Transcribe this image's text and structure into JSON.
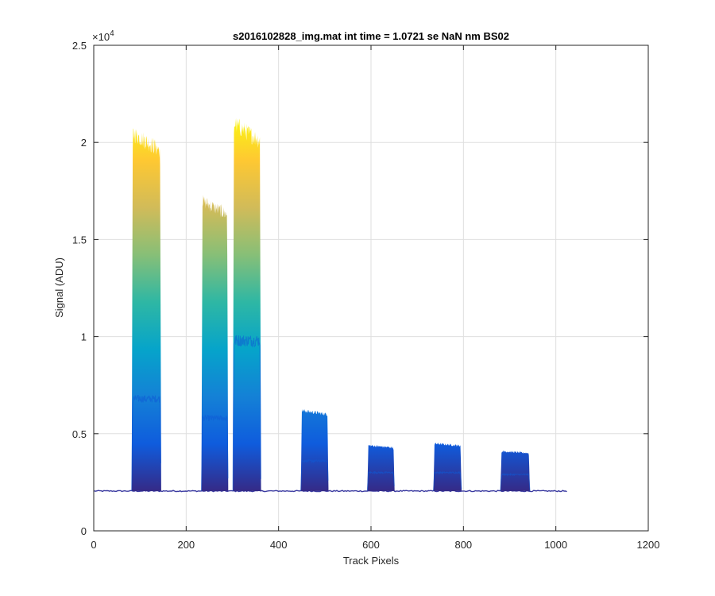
{
  "chart_data": {
    "type": "area",
    "title": "s2016102828_img.mat int time = 1.0721 se  NaN nm BS02",
    "xlabel": "Track Pixels",
    "ylabel": "Signal (ADU)",
    "xlim": [
      0,
      1200
    ],
    "ylim": [
      0,
      25000
    ],
    "y_exponent_label": "×10",
    "y_exponent_power": "4",
    "xticks": [
      0,
      200,
      400,
      600,
      800,
      1000,
      1200
    ],
    "xtick_labels": [
      "0",
      "200",
      "400",
      "600",
      "800",
      "1000",
      "1200"
    ],
    "yticks": [
      0,
      5000,
      10000,
      15000,
      20000,
      25000
    ],
    "ytick_labels": [
      "0",
      "0.5",
      "1",
      "1.5",
      "2",
      "2.5"
    ],
    "grid": true,
    "colormap": "parula",
    "colormap_stops": [
      "#352a87",
      "#0f5cdd",
      "#1481d6",
      "#06a4ca",
      "#2eb7a4",
      "#87bf77",
      "#d1bb59",
      "#fec832",
      "#f9fb0e"
    ],
    "baseline": 2050,
    "x_extent": [
      1,
      1024
    ],
    "bands": [
      {
        "x_start": 82,
        "x_end": 146,
        "peak": 20500,
        "plateau_mid": 6800
      },
      {
        "x_start": 233,
        "x_end": 291,
        "peak": 17000,
        "plateau_mid": 5800
      },
      {
        "x_start": 301,
        "x_end": 362,
        "peak": 21000,
        "plateau_mid": 9800
      },
      {
        "x_start": 448,
        "x_end": 508,
        "peak": 6200,
        "plateau_mid": 3600
      },
      {
        "x_start": 592,
        "x_end": 651,
        "peak": 4400,
        "plateau_mid": 3000
      },
      {
        "x_start": 735,
        "x_end": 796,
        "peak": 4500,
        "plateau_mid": 3000
      },
      {
        "x_start": 880,
        "x_end": 944,
        "peak": 4100,
        "plateau_mid": 2900
      }
    ]
  }
}
